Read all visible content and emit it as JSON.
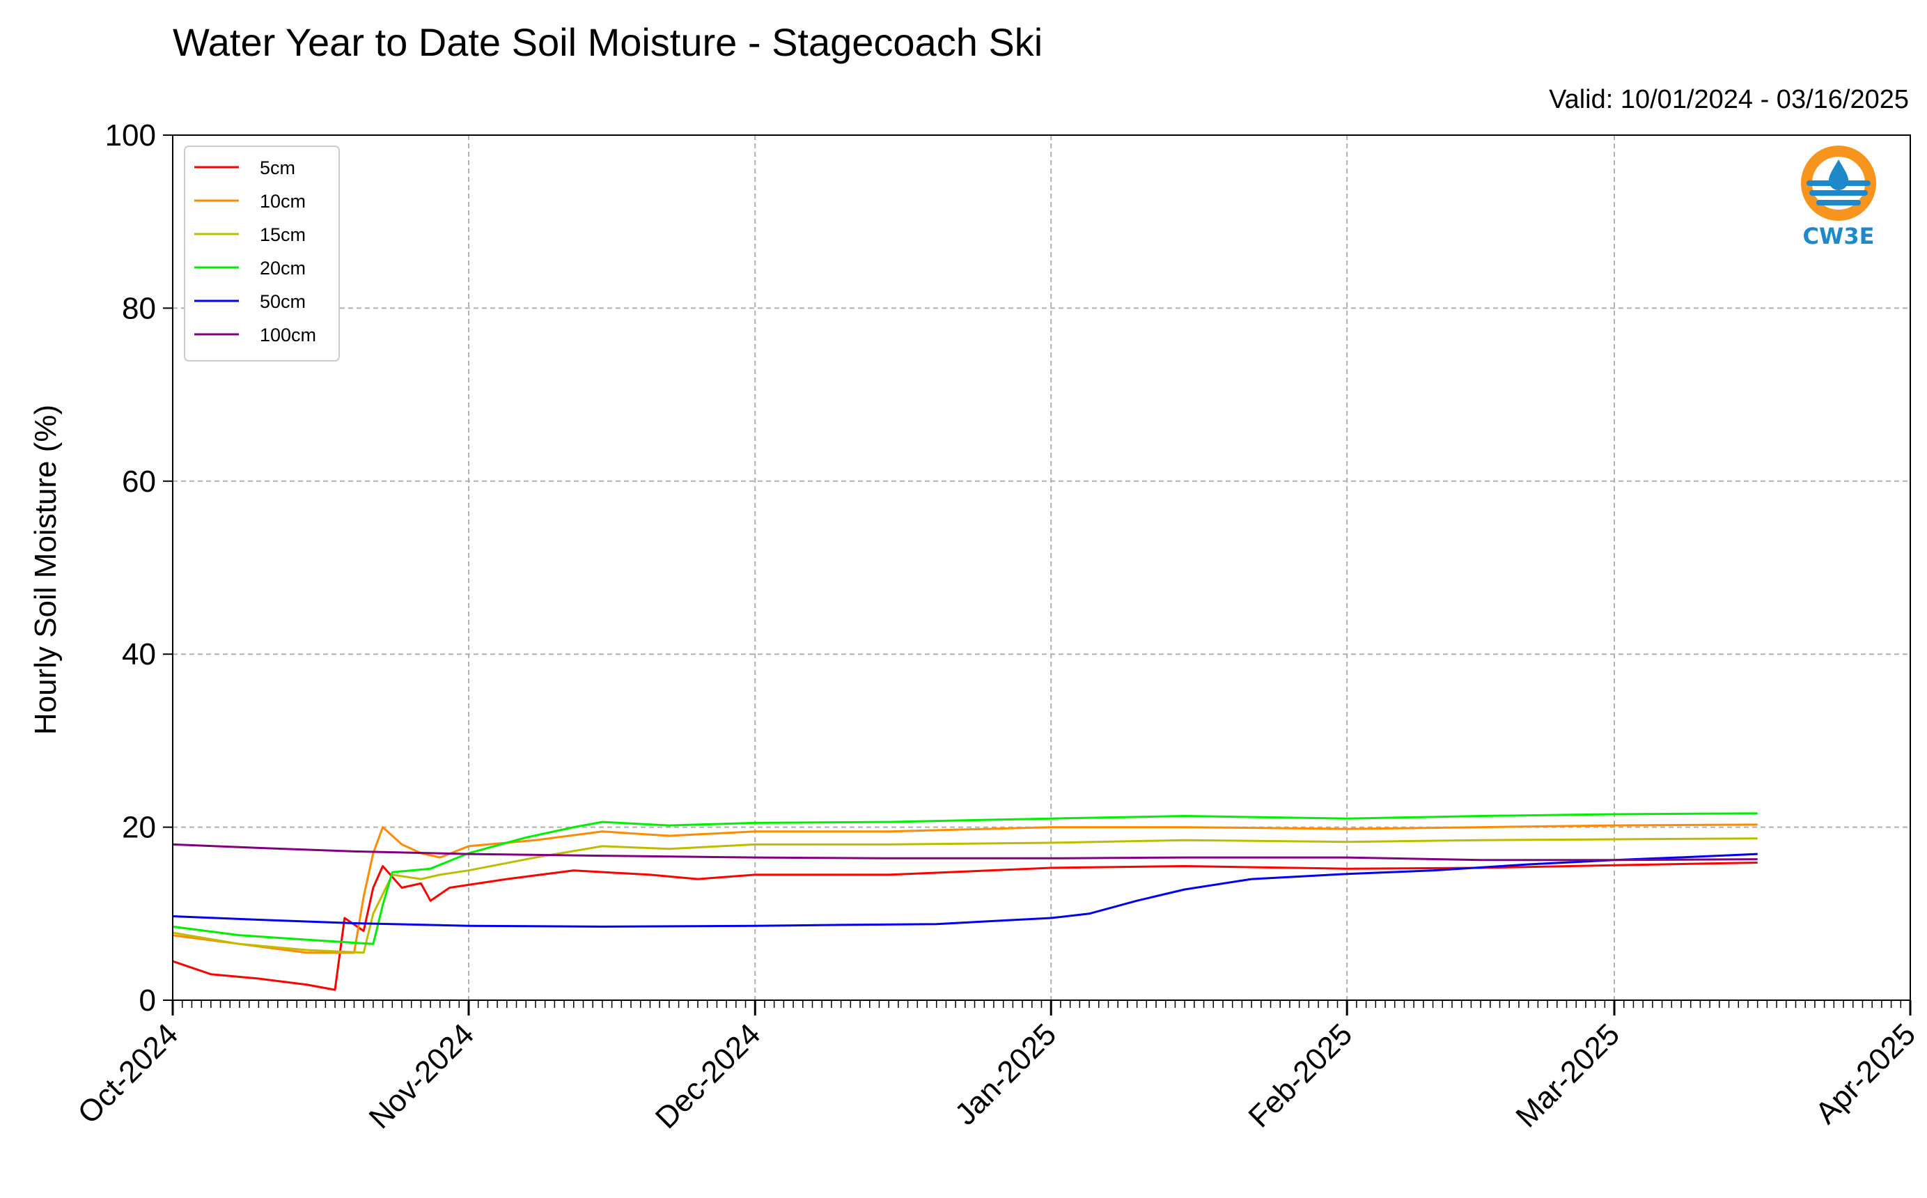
{
  "chart_data": {
    "type": "line",
    "title": "Water Year to Date Soil Moisture - Stagecoach Ski",
    "subtitle": "Valid: 10/01/2024 - 03/16/2025",
    "xlabel": "",
    "ylabel": "Hourly Soil Moisture (%)",
    "ylim": [
      0,
      100
    ],
    "xlim": [
      "2024-10-01",
      "2025-04-01"
    ],
    "x_ticks": [
      "Oct-2024",
      "Nov-2024",
      "Dec-2024",
      "Jan-2025",
      "Feb-2025",
      "Mar-2025",
      "Apr-2025"
    ],
    "x_tick_dates": [
      "2024-10-01",
      "2024-11-01",
      "2024-12-01",
      "2025-01-01",
      "2025-02-01",
      "2025-03-01",
      "2025-04-01"
    ],
    "y_ticks": [
      0,
      20,
      40,
      60,
      80,
      100
    ],
    "grid": true,
    "legend_position": "top-left",
    "series": [
      {
        "name": "5cm",
        "color": "#ff0000",
        "points": [
          [
            "2024-10-01",
            4.5
          ],
          [
            "2024-10-05",
            3.0
          ],
          [
            "2024-10-10",
            2.5
          ],
          [
            "2024-10-15",
            1.8
          ],
          [
            "2024-10-18",
            1.2
          ],
          [
            "2024-10-19",
            9.5
          ],
          [
            "2024-10-21",
            8.0
          ],
          [
            "2024-10-22",
            13.0
          ],
          [
            "2024-10-23",
            15.5
          ],
          [
            "2024-10-25",
            13.0
          ],
          [
            "2024-10-27",
            13.5
          ],
          [
            "2024-10-28",
            11.5
          ],
          [
            "2024-10-30",
            13.0
          ],
          [
            "2024-11-05",
            14.0
          ],
          [
            "2024-11-12",
            15.0
          ],
          [
            "2024-11-20",
            14.5
          ],
          [
            "2024-11-25",
            14.0
          ],
          [
            "2024-12-01",
            14.5
          ],
          [
            "2024-12-15",
            14.5
          ],
          [
            "2025-01-01",
            15.3
          ],
          [
            "2025-01-15",
            15.5
          ],
          [
            "2025-02-01",
            15.2
          ],
          [
            "2025-02-15",
            15.3
          ],
          [
            "2025-03-01",
            15.6
          ],
          [
            "2025-03-16",
            15.9
          ]
        ]
      },
      {
        "name": "10cm",
        "color": "#ff8c00",
        "points": [
          [
            "2024-10-01",
            7.5
          ],
          [
            "2024-10-08",
            6.5
          ],
          [
            "2024-10-15",
            5.5
          ],
          [
            "2024-10-20",
            5.5
          ],
          [
            "2024-10-21",
            12.0
          ],
          [
            "2024-10-22",
            17.0
          ],
          [
            "2024-10-23",
            20.0
          ],
          [
            "2024-10-25",
            18.0
          ],
          [
            "2024-10-27",
            17.0
          ],
          [
            "2024-10-29",
            16.5
          ],
          [
            "2024-11-01",
            17.8
          ],
          [
            "2024-11-08",
            18.5
          ],
          [
            "2024-11-15",
            19.5
          ],
          [
            "2024-11-22",
            19.0
          ],
          [
            "2024-12-01",
            19.5
          ],
          [
            "2024-12-15",
            19.5
          ],
          [
            "2025-01-01",
            20.0
          ],
          [
            "2025-01-15",
            20.0
          ],
          [
            "2025-02-01",
            19.8
          ],
          [
            "2025-02-15",
            20.0
          ],
          [
            "2025-03-01",
            20.2
          ],
          [
            "2025-03-16",
            20.3
          ]
        ]
      },
      {
        "name": "15cm",
        "color": "#bdbd00",
        "points": [
          [
            "2024-10-01",
            7.8
          ],
          [
            "2024-10-08",
            6.5
          ],
          [
            "2024-10-15",
            5.8
          ],
          [
            "2024-10-21",
            5.5
          ],
          [
            "2024-10-22",
            10.0
          ],
          [
            "2024-10-24",
            14.5
          ],
          [
            "2024-10-27",
            14.0
          ],
          [
            "2024-10-29",
            14.5
          ],
          [
            "2024-11-01",
            15.0
          ],
          [
            "2024-11-08",
            16.5
          ],
          [
            "2024-11-15",
            17.8
          ],
          [
            "2024-11-22",
            17.5
          ],
          [
            "2024-12-01",
            18.0
          ],
          [
            "2024-12-15",
            18.0
          ],
          [
            "2025-01-01",
            18.2
          ],
          [
            "2025-01-15",
            18.5
          ],
          [
            "2025-02-01",
            18.3
          ],
          [
            "2025-02-15",
            18.5
          ],
          [
            "2025-03-01",
            18.6
          ],
          [
            "2025-03-16",
            18.7
          ]
        ]
      },
      {
        "name": "20cm",
        "color": "#00ee00",
        "points": [
          [
            "2024-10-01",
            8.5
          ],
          [
            "2024-10-08",
            7.5
          ],
          [
            "2024-10-15",
            7.0
          ],
          [
            "2024-10-22",
            6.5
          ],
          [
            "2024-10-23",
            11.0
          ],
          [
            "2024-10-24",
            14.8
          ],
          [
            "2024-10-28",
            15.2
          ],
          [
            "2024-11-01",
            17.0
          ],
          [
            "2024-11-07",
            18.8
          ],
          [
            "2024-11-12",
            20.0
          ],
          [
            "2024-11-15",
            20.6
          ],
          [
            "2024-11-22",
            20.2
          ],
          [
            "2024-12-01",
            20.5
          ],
          [
            "2024-12-15",
            20.6
          ],
          [
            "2025-01-01",
            21.0
          ],
          [
            "2025-01-15",
            21.3
          ],
          [
            "2025-02-01",
            21.0
          ],
          [
            "2025-02-15",
            21.3
          ],
          [
            "2025-03-01",
            21.5
          ],
          [
            "2025-03-16",
            21.6
          ]
        ]
      },
      {
        "name": "50cm",
        "color": "#0000ee",
        "points": [
          [
            "2024-10-01",
            9.7
          ],
          [
            "2024-10-10",
            9.3
          ],
          [
            "2024-10-20",
            8.9
          ],
          [
            "2024-11-01",
            8.6
          ],
          [
            "2024-11-15",
            8.5
          ],
          [
            "2024-12-01",
            8.6
          ],
          [
            "2024-12-10",
            8.7
          ],
          [
            "2024-12-20",
            8.8
          ],
          [
            "2025-01-01",
            9.5
          ],
          [
            "2025-01-05",
            10.0
          ],
          [
            "2025-01-10",
            11.5
          ],
          [
            "2025-01-15",
            12.8
          ],
          [
            "2025-01-22",
            14.0
          ],
          [
            "2025-02-01",
            14.6
          ],
          [
            "2025-02-10",
            15.0
          ],
          [
            "2025-02-20",
            15.7
          ],
          [
            "2025-03-01",
            16.2
          ],
          [
            "2025-03-10",
            16.6
          ],
          [
            "2025-03-16",
            16.9
          ]
        ]
      },
      {
        "name": "100cm",
        "color": "#800080",
        "points": [
          [
            "2024-10-01",
            18.0
          ],
          [
            "2024-10-10",
            17.6
          ],
          [
            "2024-10-20",
            17.2
          ],
          [
            "2024-11-01",
            16.9
          ],
          [
            "2024-11-15",
            16.7
          ],
          [
            "2024-12-01",
            16.5
          ],
          [
            "2024-12-15",
            16.4
          ],
          [
            "2025-01-01",
            16.4
          ],
          [
            "2025-01-15",
            16.5
          ],
          [
            "2025-02-01",
            16.5
          ],
          [
            "2025-02-15",
            16.2
          ],
          [
            "2025-03-01",
            16.2
          ],
          [
            "2025-03-16",
            16.3
          ]
        ]
      }
    ]
  },
  "logo": {
    "text": "CW3E",
    "ring_color": "#f7941d",
    "wave_color": "#1e88c8"
  }
}
